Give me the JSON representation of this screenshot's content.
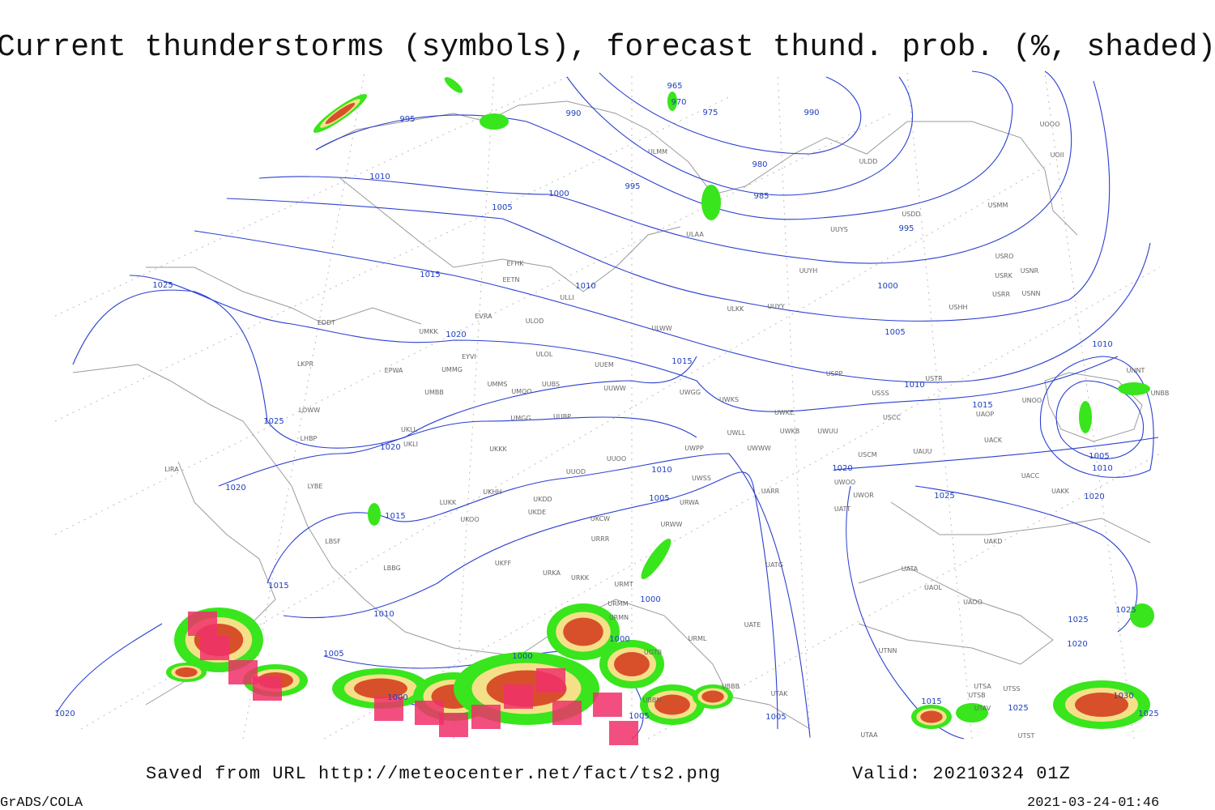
{
  "header": {
    "title": "Current thunderstorms (symbols), forecast thund. prob. (%, shaded)"
  },
  "footer": {
    "source": "Saved from URL http://meteocenter.net/fact/ts2.png",
    "valid": "Valid: 20210324 01Z",
    "software": "GrADS/COLA",
    "timestamp": "2021-03-24-01:46"
  },
  "isobar_labels": [
    965,
    970,
    975,
    990,
    990,
    995,
    980,
    985,
    995,
    1010,
    1000,
    1005,
    995,
    1025,
    1015,
    1010,
    1000,
    1020,
    1005,
    1015,
    1010,
    1010,
    1025,
    1020,
    1015,
    1005,
    1010,
    1020,
    1010,
    1020,
    1025,
    1020,
    1015,
    1005,
    1015,
    1000,
    1010,
    1025,
    1025,
    1005,
    1000,
    1020,
    1000,
    1000,
    1015,
    1025,
    1030,
    1005,
    1005,
    1025,
    1020
  ],
  "stations": [
    "ULMM",
    "ULDD",
    "ULAA",
    "UUYS",
    "USDD",
    "USMM",
    "UOOO",
    "UOII",
    "EFHK",
    "EETN",
    "ULLI",
    "UUYH",
    "USRO",
    "USRK",
    "USNR",
    "USRR",
    "USNN",
    "USHH",
    "EVRA",
    "ULOD",
    "UMKK",
    "ULWW",
    "ULKK",
    "UUYY",
    "EDDT",
    "EYVI",
    "ULOL",
    "UUEM",
    "LKPR",
    "EPWA",
    "UMMG",
    "UMMS",
    "UMOO",
    "UUBS",
    "UUWW",
    "UWGG",
    "UWKS",
    "USPP",
    "USSS",
    "USTR",
    "UNOO",
    "UNNT",
    "UNBB",
    "LOWW",
    "UMBB",
    "UKLL",
    "UKLI",
    "LHBP",
    "UMGG",
    "UUBP",
    "UWKE",
    "UWWW",
    "UWLL",
    "UWKB",
    "UWUU",
    "USCC",
    "UAOP",
    "UACK",
    "UUOO",
    "UKKK",
    "UWPP",
    "USCM",
    "UAUU",
    "LIRA",
    "UUOD",
    "UWSS",
    "UACC",
    "UAKK",
    "LYBE",
    "UKHH",
    "UKDD",
    "UWOO",
    "UWOR",
    "UARR",
    "LUKK",
    "UKOO",
    "UKDE",
    "URWA",
    "UKCW",
    "URWW",
    "UATT",
    "UAKD",
    "LBSF",
    "URRR",
    "LBBG",
    "UKFF",
    "URKA",
    "URKK",
    "URMT",
    "UATG",
    "UATA",
    "UAOL",
    "UAOO",
    "URMM",
    "URMN",
    "UATE",
    "URML",
    "UTNN",
    "UGTB",
    "UBBB",
    "UTAK",
    "UBBN",
    "UTSA",
    "UTSB",
    "UTSS",
    "UTAV",
    "UTAA",
    "UTST"
  ]
}
